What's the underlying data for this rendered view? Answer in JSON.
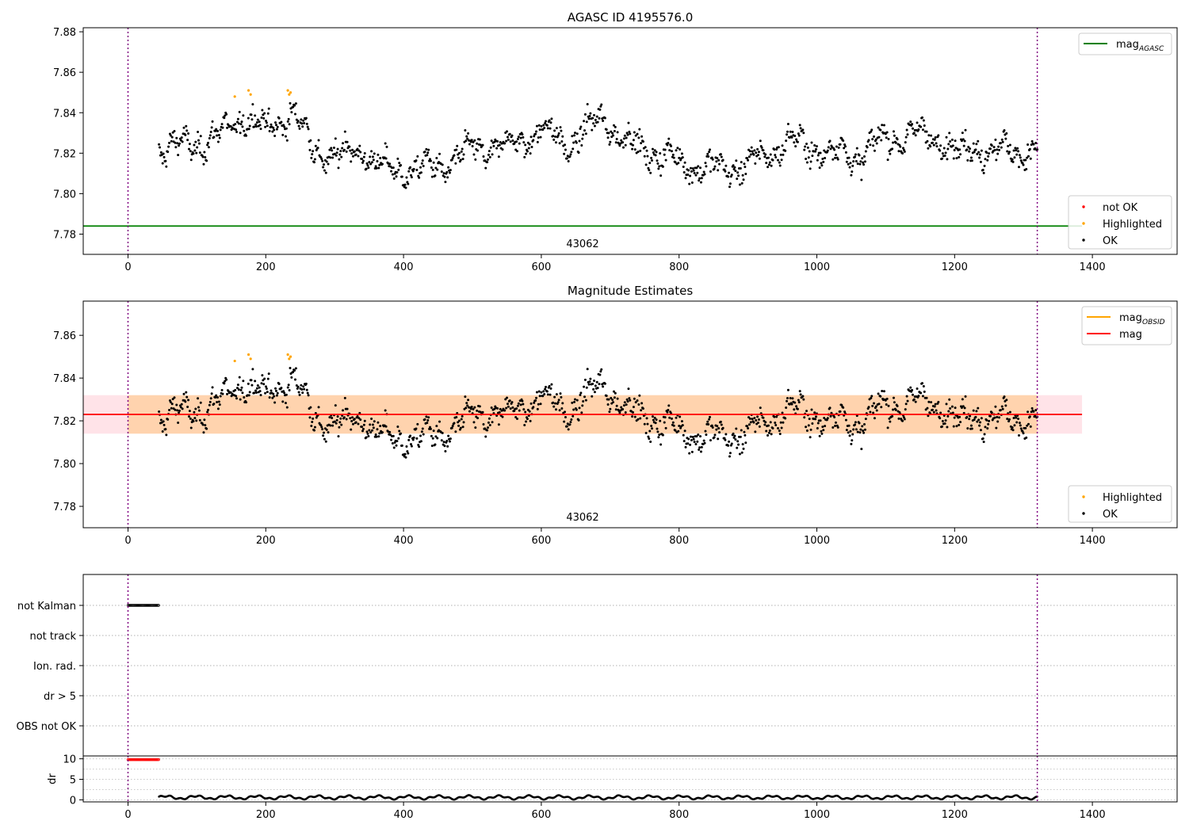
{
  "chart_data": [
    {
      "type": "scatter",
      "title": "AGASC ID 4195576.0",
      "xlim": [
        -65,
        1523
      ],
      "ylim": [
        7.77,
        7.882
      ],
      "xticks": [
        0,
        200,
        400,
        600,
        800,
        1000,
        1200,
        1400
      ],
      "yticks": [
        7.78,
        7.8,
        7.82,
        7.84,
        7.86,
        7.88
      ],
      "ytick_labels": [
        "7.78",
        "7.80",
        "7.82",
        "7.84",
        "7.86",
        "7.88"
      ],
      "obsid_boundaries": [
        0,
        1320
      ],
      "obsid_label": "43062",
      "obsid_label_x": 660,
      "mag_agasc": 7.784,
      "mag_agasc_xrange": [
        -65,
        1385
      ],
      "series": [
        {
          "name": "OK",
          "color": "#000000",
          "x_range": [
            45,
            1320
          ],
          "center": 7.8235,
          "n_points": 1200
        },
        {
          "name": "Highlighted",
          "color": "#ffa500",
          "points": [
            [
              155,
              7.848
            ],
            [
              175,
              7.851
            ],
            [
              178,
              7.849
            ],
            [
              232,
              7.851
            ],
            [
              234,
              7.849
            ],
            [
              236,
              7.85
            ]
          ]
        },
        {
          "name": "not OK",
          "color": "#ff0000",
          "points": []
        }
      ],
      "legend_top": {
        "items": [
          {
            "label": "mag",
            "sub": "AGASC",
            "color": "#008000"
          }
        ],
        "position": "upper right"
      },
      "legend_bottom": {
        "items": [
          {
            "label": "not OK",
            "color": "#ff0000"
          },
          {
            "label": "Highlighted",
            "color": "#ffa500"
          },
          {
            "label": "OK",
            "color": "#000000"
          }
        ],
        "position": "lower right"
      }
    },
    {
      "type": "scatter",
      "title": "Magnitude Estimates",
      "xlim": [
        -65,
        1523
      ],
      "ylim": [
        7.77,
        7.876
      ],
      "xticks": [
        0,
        200,
        400,
        600,
        800,
        1000,
        1200,
        1400
      ],
      "yticks": [
        7.78,
        7.8,
        7.82,
        7.84,
        7.86
      ],
      "ytick_labels": [
        "7.78",
        "7.80",
        "7.82",
        "7.84",
        "7.86"
      ],
      "obsid_boundaries": [
        0,
        1320
      ],
      "obsid_label": "43062",
      "obsid_label_x": 660,
      "mag": 7.823,
      "mag_band": [
        7.814,
        7.832
      ],
      "mag_band_xrange": [
        -65,
        1385
      ],
      "mag_obsid": 7.823,
      "mag_obsid_xrange": [
        0,
        1320
      ],
      "series": [
        {
          "name": "OK",
          "color": "#000000",
          "x_range": [
            45,
            1320
          ],
          "center": 7.8235,
          "n_points": 1200
        },
        {
          "name": "Highlighted",
          "color": "#ffa500",
          "points": [
            [
              155,
              7.848
            ],
            [
              175,
              7.851
            ],
            [
              178,
              7.849
            ],
            [
              232,
              7.851
            ],
            [
              234,
              7.849
            ],
            [
              236,
              7.85
            ]
          ]
        }
      ],
      "legend_top": {
        "items": [
          {
            "label": "mag",
            "sub": "OBSID",
            "color": "#ffa500"
          },
          {
            "label": "mag",
            "sub": "",
            "color": "#ff0000"
          }
        ],
        "position": "upper right"
      },
      "legend_bottom": {
        "items": [
          {
            "label": "Highlighted",
            "color": "#ffa500"
          },
          {
            "label": "OK",
            "color": "#000000"
          }
        ],
        "position": "lower right"
      }
    },
    {
      "type": "scatter",
      "xlim": [
        -65,
        1523
      ],
      "flag_labels": [
        "not Kalman",
        "not track",
        "Ion. rad.",
        "dr > 5",
        "OBS not OK"
      ],
      "flag_points": {
        "not Kalman": [
          0,
          45
        ]
      },
      "obsid_boundaries": [
        0,
        1320
      ]
    },
    {
      "type": "scatter",
      "ylabel": "dr",
      "xlim": [
        -65,
        1523
      ],
      "ylim": [
        -0.5,
        10.7
      ],
      "yticks": [
        0,
        5,
        10
      ],
      "ytick_labels": [
        "0",
        "5",
        "10"
      ],
      "xticks": [
        0,
        200,
        400,
        600,
        800,
        1000,
        1200,
        1400
      ],
      "dr_clipped": {
        "x_range": [
          0,
          45
        ],
        "value": 9.8,
        "color": "#ff0000"
      },
      "dr_series": {
        "x_range": [
          45,
          1320
        ],
        "center": 0.6,
        "color": "#000000"
      },
      "obsid_boundaries": [
        0,
        1320
      ]
    }
  ]
}
